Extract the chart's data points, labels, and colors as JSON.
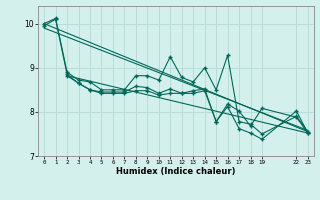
{
  "xlabel": "Humidex (Indice chaleur)",
  "bg_color": "#d4f0ec",
  "grid_color": "#b8ddd8",
  "line_color": "#006858",
  "xlim": [
    -0.5,
    23.5
  ],
  "ylim": [
    7,
    10.4
  ],
  "yticks": [
    7,
    8,
    9,
    10
  ],
  "series1_x": [
    0,
    1,
    2,
    3,
    4,
    5,
    6,
    7,
    8,
    9,
    10,
    11,
    12,
    13,
    14,
    15,
    16,
    17,
    18,
    19,
    22,
    23
  ],
  "series1_y": [
    10.0,
    10.12,
    8.9,
    8.72,
    8.68,
    8.5,
    8.5,
    8.5,
    8.82,
    8.82,
    8.72,
    9.25,
    8.78,
    8.68,
    9.0,
    8.5,
    9.28,
    7.78,
    7.72,
    7.5,
    7.9,
    7.55
  ],
  "series2_x": [
    0,
    1,
    2,
    3,
    4,
    5,
    6,
    7,
    8,
    9,
    10,
    11,
    12,
    13,
    14,
    15,
    16,
    17,
    18,
    19,
    22,
    23
  ],
  "series2_y": [
    9.95,
    10.1,
    8.85,
    8.65,
    8.5,
    8.45,
    8.45,
    8.45,
    8.58,
    8.55,
    8.42,
    8.52,
    8.42,
    8.48,
    8.52,
    7.78,
    8.18,
    8.02,
    7.68,
    8.08,
    7.88,
    7.52
  ],
  "series3_x": [
    2,
    3,
    4,
    5,
    6,
    7,
    8,
    9,
    10,
    11,
    12,
    13,
    14,
    15,
    16,
    17,
    18,
    19,
    22,
    23
  ],
  "series3_y": [
    8.82,
    8.65,
    8.5,
    8.42,
    8.42,
    8.42,
    8.48,
    8.48,
    8.38,
    8.42,
    8.42,
    8.42,
    8.48,
    7.78,
    8.12,
    7.62,
    7.52,
    7.38,
    8.02,
    7.52
  ],
  "trend1_x": [
    0,
    23
  ],
  "trend1_y": [
    10.0,
    7.55
  ],
  "trend2_x": [
    0,
    23
  ],
  "trend2_y": [
    9.9,
    7.58
  ],
  "trend3_x": [
    2,
    23
  ],
  "trend3_y": [
    8.82,
    7.52
  ],
  "xtick_positions": [
    0,
    1,
    2,
    3,
    4,
    5,
    6,
    7,
    8,
    9,
    10,
    11,
    12,
    13,
    14,
    15,
    16,
    17,
    18,
    19,
    22,
    23
  ],
  "xtick_labels": [
    "0",
    "1",
    "2",
    "3",
    "4",
    "5",
    "6",
    "7",
    "8",
    "9",
    "10",
    "11",
    "12",
    "13",
    "14",
    "15",
    "16",
    "17",
    "18",
    "19",
    "22",
    "23"
  ]
}
